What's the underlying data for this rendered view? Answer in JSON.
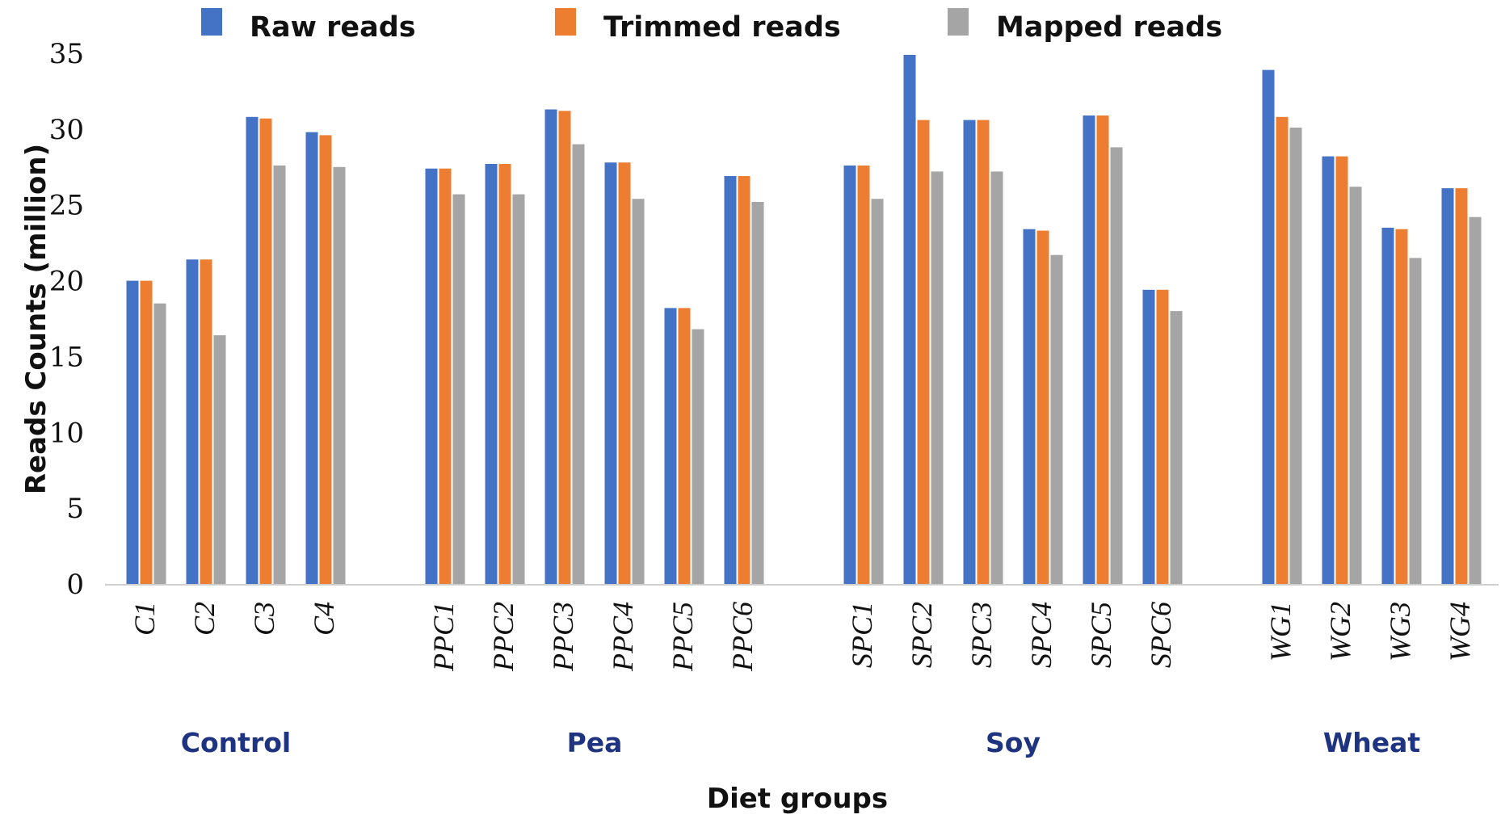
{
  "chart_data": {
    "type": "bar",
    "title": "",
    "xlabel": "Diet groups",
    "ylabel": "Reads Counts (million)",
    "ylim": [
      0,
      35
    ],
    "yticks": [
      0,
      5,
      10,
      15,
      20,
      25,
      30,
      35
    ],
    "grid": false,
    "legend_position": "top",
    "categories": [
      "C1",
      "C2",
      "C3",
      "C4",
      "PPC1",
      "PPC2",
      "PPC3",
      "PPC4",
      "PPC5",
      "PPC6",
      "SPC1",
      "SPC2",
      "SPC3",
      "SPC4",
      "SPC5",
      "SPC6",
      "WG1",
      "WG2",
      "WG3",
      "WG4"
    ],
    "groups": [
      {
        "name": "Control",
        "count": 4
      },
      {
        "name": "Pea",
        "count": 6
      },
      {
        "name": "Soy",
        "count": 6
      },
      {
        "name": "Wheat",
        "count": 4
      }
    ],
    "series": [
      {
        "name": "Raw reads",
        "color": "#4472c4",
        "values": [
          20.0,
          21.4,
          30.8,
          29.8,
          27.4,
          27.7,
          31.3,
          27.8,
          18.2,
          26.9,
          27.6,
          34.9,
          30.6,
          23.4,
          30.9,
          19.4,
          33.9,
          28.2,
          23.5,
          26.1
        ]
      },
      {
        "name": "Trimmed reads",
        "color": "#ed7d31",
        "values": [
          20.0,
          21.4,
          30.7,
          29.6,
          27.4,
          27.7,
          31.2,
          27.8,
          18.2,
          26.9,
          27.6,
          30.6,
          30.6,
          23.3,
          30.9,
          19.4,
          30.8,
          28.2,
          23.4,
          26.1
        ]
      },
      {
        "name": "Mapped reads",
        "color": "#a5a5a5",
        "values": [
          18.5,
          16.4,
          27.6,
          27.5,
          25.7,
          25.7,
          29.0,
          25.4,
          16.8,
          25.2,
          25.4,
          27.2,
          27.2,
          21.7,
          28.8,
          18.0,
          30.1,
          26.2,
          21.5,
          24.2
        ]
      }
    ]
  }
}
